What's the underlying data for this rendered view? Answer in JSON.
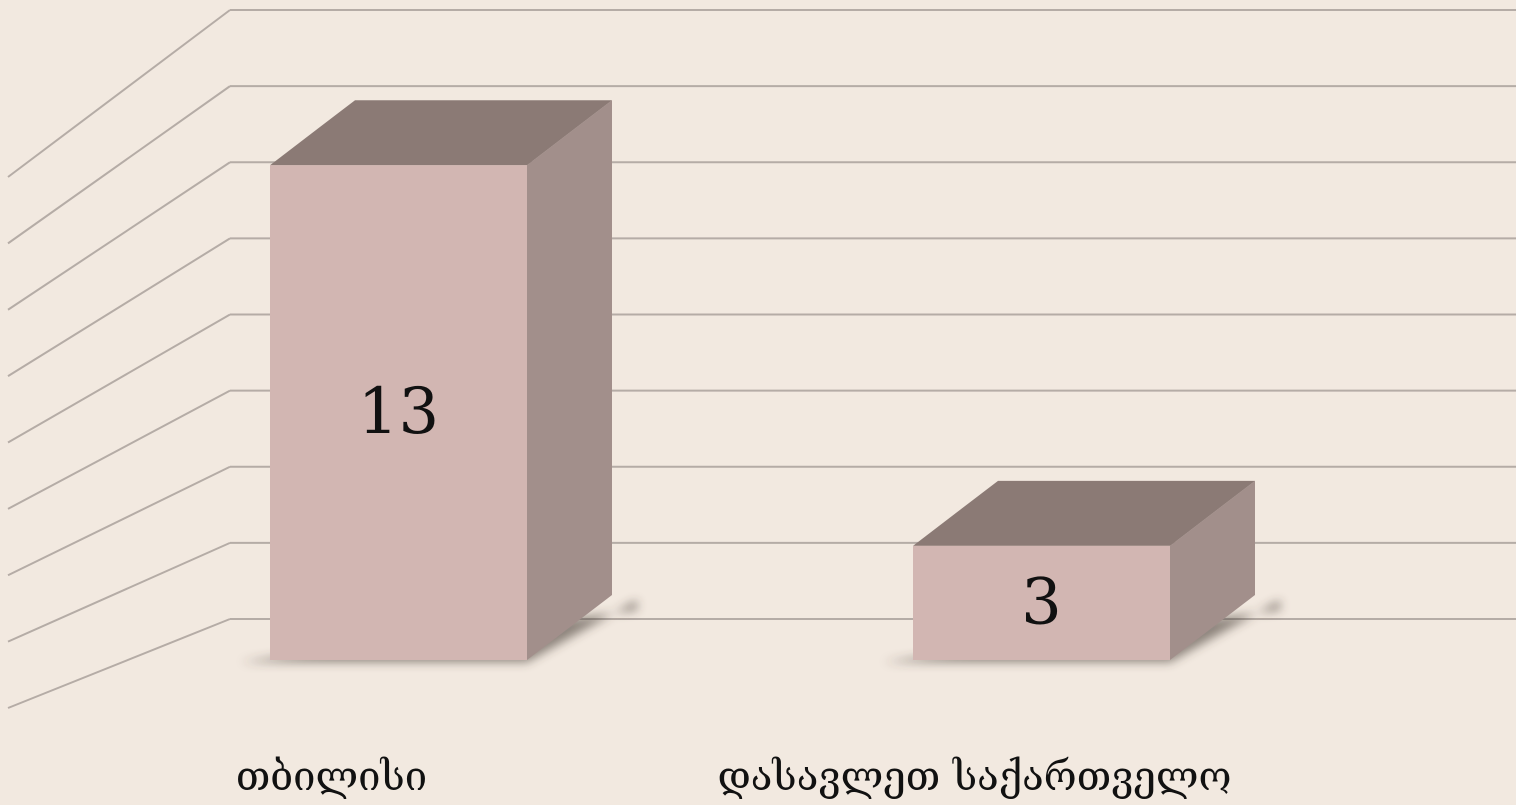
{
  "chart_data": {
    "type": "bar3d",
    "categories": [
      "თბილისი",
      "დასავლეთ საქართველო"
    ],
    "values": [
      13,
      3
    ],
    "colors": {
      "front": "#d2b6b2",
      "top": "#8b7a75",
      "side": "#a28f8b"
    },
    "ylim": [
      0,
      16
    ],
    "yticks": [
      0,
      2,
      4,
      6,
      8,
      10,
      12,
      14,
      16
    ],
    "grid": true
  }
}
